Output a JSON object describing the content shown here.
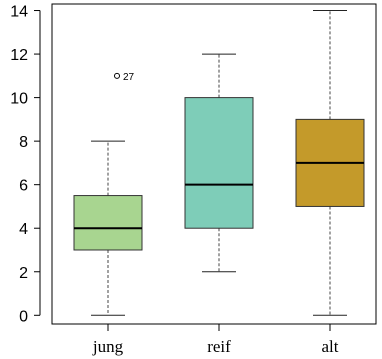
{
  "chart_data": {
    "type": "boxplot",
    "title": "",
    "xlabel": "",
    "ylabel": "",
    "ylim": [
      -0.4,
      14.3
    ],
    "yticks": [
      0,
      2,
      4,
      6,
      8,
      10,
      12,
      14
    ],
    "grid": false,
    "categories": [
      "jung",
      "reif",
      "alt"
    ],
    "boxes": [
      {
        "category": "jung",
        "whisker_low": 0,
        "q1": 3,
        "median": 4,
        "q3": 5.5,
        "whisker_high": 8,
        "color": "#a8d590"
      },
      {
        "category": "reif",
        "whisker_low": 2,
        "q1": 4,
        "median": 6,
        "q3": 10,
        "whisker_high": 12,
        "color": "#7ecdb8"
      },
      {
        "category": "alt",
        "whisker_low": 0,
        "q1": 5,
        "median": 7,
        "q3": 9,
        "whisker_high": 14,
        "color": "#c49a2a"
      }
    ],
    "outliers": [
      {
        "category": "jung",
        "value": 11,
        "label": "27"
      }
    ]
  }
}
